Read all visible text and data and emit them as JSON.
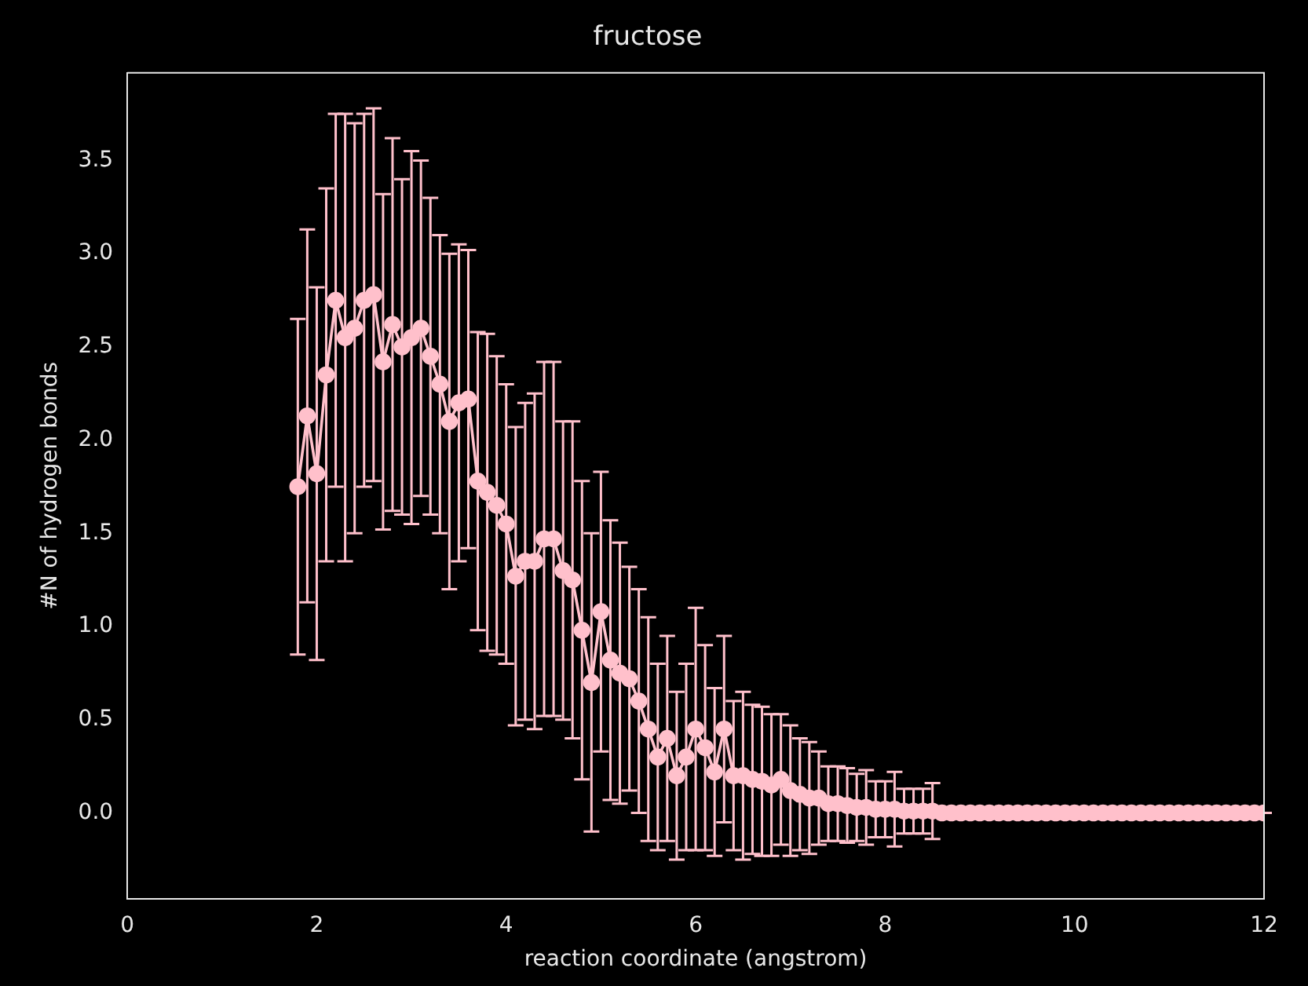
{
  "chart_data": {
    "type": "line",
    "title": "fructose",
    "xlabel": "reaction coordinate (angstrom)",
    "ylabel": "#N of hydrogen bonds",
    "x": [
      1.8,
      1.9,
      2.0,
      2.1,
      2.2,
      2.3,
      2.4,
      2.5,
      2.6,
      2.7,
      2.8,
      2.9,
      3.0,
      3.1,
      3.2,
      3.3,
      3.4,
      3.5,
      3.6,
      3.7,
      3.8,
      3.9,
      4.0,
      4.1,
      4.2,
      4.3,
      4.4,
      4.5,
      4.6,
      4.7,
      4.8,
      4.9,
      5.0,
      5.1,
      5.2,
      5.3,
      5.4,
      5.5,
      5.6,
      5.7,
      5.8,
      5.9,
      6.0,
      6.1,
      6.2,
      6.3,
      6.4,
      6.5,
      6.6,
      6.7,
      6.8,
      6.9,
      7.0,
      7.1,
      7.2,
      7.3,
      7.4,
      7.5,
      7.6,
      7.7,
      7.8,
      7.9,
      8.0,
      8.1,
      8.2,
      8.3,
      8.4,
      8.5,
      8.6,
      8.7,
      8.8,
      8.9,
      9.0,
      9.1,
      9.2,
      9.3,
      9.4,
      9.5,
      9.6,
      9.7,
      9.8,
      9.9,
      10.0,
      10.1,
      10.2,
      10.3,
      10.4,
      10.5,
      10.6,
      10.7,
      10.8,
      10.9,
      11.0,
      11.1,
      11.2,
      11.3,
      11.4,
      11.5,
      11.6,
      11.7,
      11.8,
      11.9,
      12.0
    ],
    "series": [
      {
        "color": "#ffc0cb",
        "values": [
          1.75,
          2.13,
          1.82,
          2.35,
          2.75,
          2.55,
          2.6,
          2.75,
          2.78,
          2.42,
          2.62,
          2.5,
          2.55,
          2.6,
          2.45,
          2.3,
          2.1,
          2.2,
          2.22,
          1.78,
          1.72,
          1.65,
          1.55,
          1.27,
          1.35,
          1.35,
          1.47,
          1.47,
          1.3,
          1.25,
          0.98,
          0.7,
          1.08,
          0.82,
          0.75,
          0.72,
          0.6,
          0.45,
          0.3,
          0.4,
          0.2,
          0.3,
          0.45,
          0.35,
          0.22,
          0.45,
          0.2,
          0.2,
          0.18,
          0.17,
          0.15,
          0.18,
          0.12,
          0.1,
          0.08,
          0.08,
          0.05,
          0.05,
          0.04,
          0.03,
          0.03,
          0.02,
          0.02,
          0.02,
          0.01,
          0.01,
          0.01,
          0.01,
          0,
          0,
          0,
          0,
          0,
          0,
          0,
          0,
          0,
          0,
          0,
          0,
          0,
          0,
          0,
          0,
          0,
          0,
          0,
          0,
          0,
          0,
          0,
          0,
          0,
          0,
          0,
          0,
          0,
          0,
          0,
          0,
          0,
          0,
          0
        ],
        "errors": [
          0.9,
          1.0,
          1.0,
          1.0,
          1.0,
          1.2,
          1.1,
          1.0,
          1.0,
          0.9,
          1.0,
          0.9,
          1.0,
          0.9,
          0.85,
          0.8,
          0.9,
          0.85,
          0.8,
          0.8,
          0.85,
          0.8,
          0.75,
          0.8,
          0.85,
          0.9,
          0.95,
          0.95,
          0.8,
          0.85,
          0.8,
          0.8,
          0.75,
          0.75,
          0.7,
          0.6,
          0.6,
          0.6,
          0.5,
          0.55,
          0.45,
          0.5,
          0.65,
          0.55,
          0.45,
          0.5,
          0.4,
          0.45,
          0.4,
          0.4,
          0.38,
          0.35,
          0.35,
          0.3,
          0.3,
          0.25,
          0.2,
          0.2,
          0.2,
          0.18,
          0.2,
          0.15,
          0.15,
          0.2,
          0.12,
          0.12,
          0.12,
          0.15,
          0,
          0,
          0,
          0,
          0,
          0,
          0,
          0,
          0,
          0,
          0,
          0,
          0,
          0,
          0,
          0,
          0,
          0,
          0,
          0,
          0,
          0,
          0,
          0,
          0,
          0,
          0,
          0,
          0,
          0,
          0,
          0,
          0,
          0,
          0
        ]
      }
    ],
    "xlim": [
      0,
      12
    ],
    "xticks": [
      0,
      2,
      4,
      6,
      8,
      10,
      12
    ],
    "ylim": [
      -0.46,
      3.97
    ],
    "yticks": [
      {
        "value": 0,
        "label": "0.0"
      },
      {
        "value": 0.5,
        "label": "0.5"
      },
      {
        "value": 1,
        "label": "1.0"
      },
      {
        "value": 1.5,
        "label": "1.5"
      },
      {
        "value": 2,
        "label": "2.0"
      },
      {
        "value": 2.5,
        "label": "2.5"
      },
      {
        "value": 3,
        "label": "3.0"
      },
      {
        "value": 3.5,
        "label": "3.5"
      }
    ],
    "marker": "circle",
    "line_style": "solid",
    "grid": false,
    "legend": false
  }
}
